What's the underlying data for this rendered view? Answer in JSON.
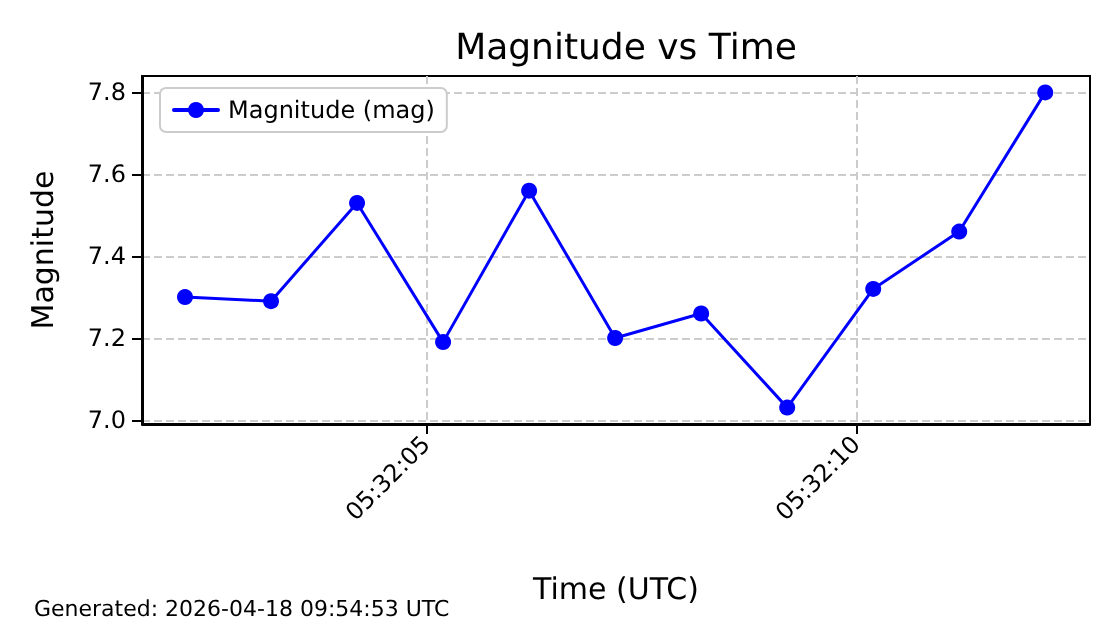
{
  "chart_data": {
    "type": "line",
    "title": "Magnitude vs Time",
    "xlabel": "Time (UTC)",
    "ylabel": "Magnitude",
    "x": [
      5.5339444,
      5.5342222,
      5.5345,
      5.5347778,
      5.5350556,
      5.5353333,
      5.5356111,
      5.5358889,
      5.5361667,
      5.5364444,
      5.5367222
    ],
    "series": [
      {
        "name": "Magnitude (mag)",
        "color": "#0000ff",
        "values": [
          7.3,
          7.29,
          7.53,
          7.19,
          7.56,
          7.2,
          7.26,
          7.03,
          7.32,
          7.46,
          7.8
        ]
      }
    ],
    "xlim": [
      5.5338056,
      5.5368667
    ],
    "xticks": [
      {
        "value": 5.5347222,
        "label": "05:32:05"
      },
      {
        "value": 5.5361111,
        "label": "05:32:10"
      }
    ],
    "ylim": [
      6.99,
      7.84
    ],
    "yticks": [
      {
        "value": 7.0,
        "label": "7.0"
      },
      {
        "value": 7.2,
        "label": "7.2"
      },
      {
        "value": 7.4,
        "label": "7.4"
      },
      {
        "value": 7.6,
        "label": "7.6"
      },
      {
        "value": 7.8,
        "label": "7.8"
      }
    ],
    "grid": true,
    "legend": "top left",
    "marker": "circle",
    "line_style": "solid",
    "annotations": [
      "Generated: 2026-04-18 09:54:53 UTC"
    ]
  }
}
